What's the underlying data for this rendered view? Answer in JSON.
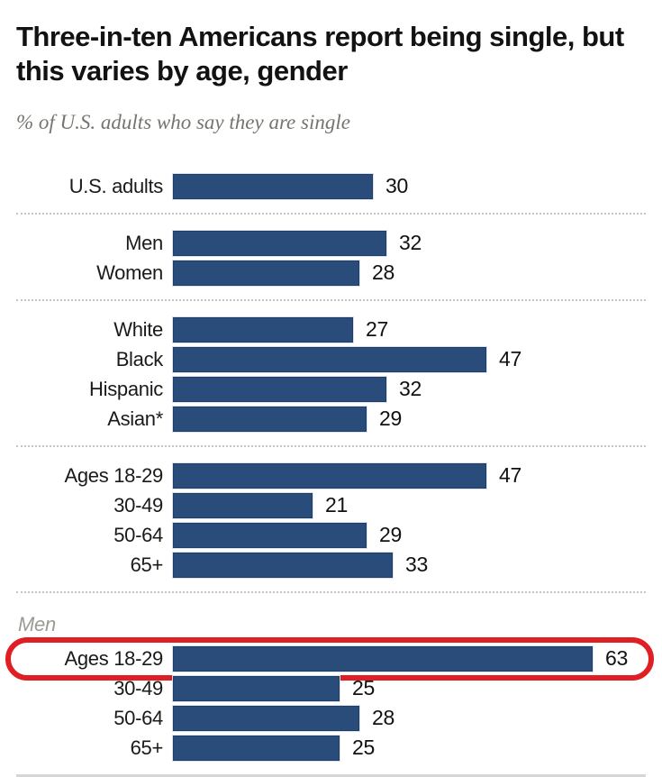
{
  "header": {
    "title": "Three-in-ten Americans report being single, but this varies by age, gender",
    "subtitle": "% of U.S. adults who say they are single"
  },
  "chart_data": {
    "type": "bar",
    "orientation": "horizontal",
    "title": "Three-in-ten Americans report being single, but this varies by age, gender",
    "subtitle": "% of U.S. adults who say they are single",
    "unit": "%",
    "value_labels_shown": true,
    "axes_shown": false,
    "bar_color": "#2a4c7b",
    "separator_style": "dotted",
    "groups": [
      {
        "name": "overall",
        "rows": [
          {
            "label": "U.S. adults",
            "value": 30
          }
        ]
      },
      {
        "name": "gender",
        "rows": [
          {
            "label": "Men",
            "value": 32
          },
          {
            "label": "Women",
            "value": 28
          }
        ]
      },
      {
        "name": "race-ethnicity",
        "rows": [
          {
            "label": "White",
            "value": 27
          },
          {
            "label": "Black",
            "value": 47
          },
          {
            "label": "Hispanic",
            "value": 32
          },
          {
            "label": "Asian*",
            "value": 29
          }
        ]
      },
      {
        "name": "age",
        "rows": [
          {
            "label": "Ages 18-29",
            "value": 47
          },
          {
            "label": "30-49",
            "value": 21
          },
          {
            "label": "50-64",
            "value": 29
          },
          {
            "label": "65+",
            "value": 33
          }
        ]
      },
      {
        "name": "men-by-age",
        "section_label": "Men",
        "rows": [
          {
            "label": "Ages 18-29",
            "value": 63,
            "highlighted": true
          },
          {
            "label": "30-49",
            "value": 25
          },
          {
            "label": "50-64",
            "value": 28
          },
          {
            "label": "65+",
            "value": 25
          }
        ]
      }
    ],
    "highlight": {
      "group": "Men",
      "label": "Ages 18-29",
      "value": 63,
      "annotation_style": "red-rounded-rectangle",
      "annotation_color": "#e01f25"
    }
  }
}
